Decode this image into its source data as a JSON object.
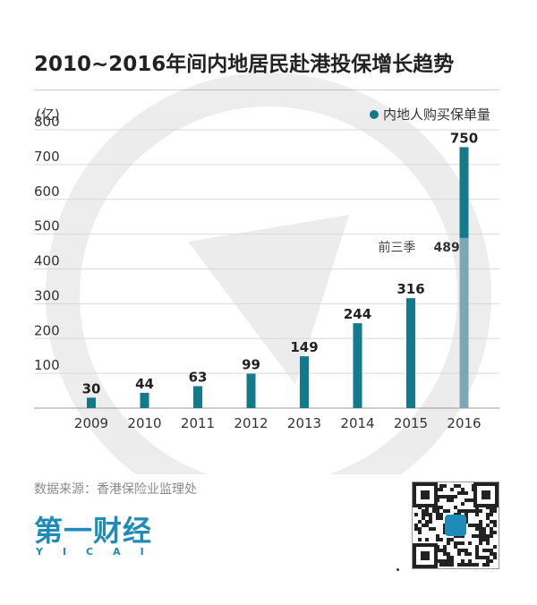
{
  "title": "2010~2016年间内地居民赴港投保增长趋势",
  "source": "数据来源：香港保险业监理处",
  "logo": {
    "main": "第一财经",
    "sub": "YICAI"
  },
  "colors": {
    "bar": "#137a8c",
    "bar_light": "#7aa9b5",
    "logo": "#1e8bb8"
  },
  "chart_data": {
    "type": "bar",
    "ylabel": "(亿)",
    "ylim": [
      0,
      800
    ],
    "yticks": [
      100,
      200,
      300,
      400,
      500,
      600,
      700,
      800
    ],
    "categories": [
      "2009",
      "2010",
      "2011",
      "2012",
      "2013",
      "2014",
      "2015",
      "2016"
    ],
    "series": [
      {
        "name": "内地人购买保单量",
        "values": [
          30,
          44,
          63,
          99,
          149,
          244,
          316,
          750
        ]
      }
    ],
    "data_labels": [
      "30",
      "44",
      "63",
      "99",
      "149",
      "244",
      "316",
      "750"
    ],
    "annotation": {
      "text": "前三季",
      "value": 489,
      "category": "2016"
    },
    "legend": {
      "label": "内地人购买保单量",
      "position": "top-right"
    },
    "grid": true
  }
}
